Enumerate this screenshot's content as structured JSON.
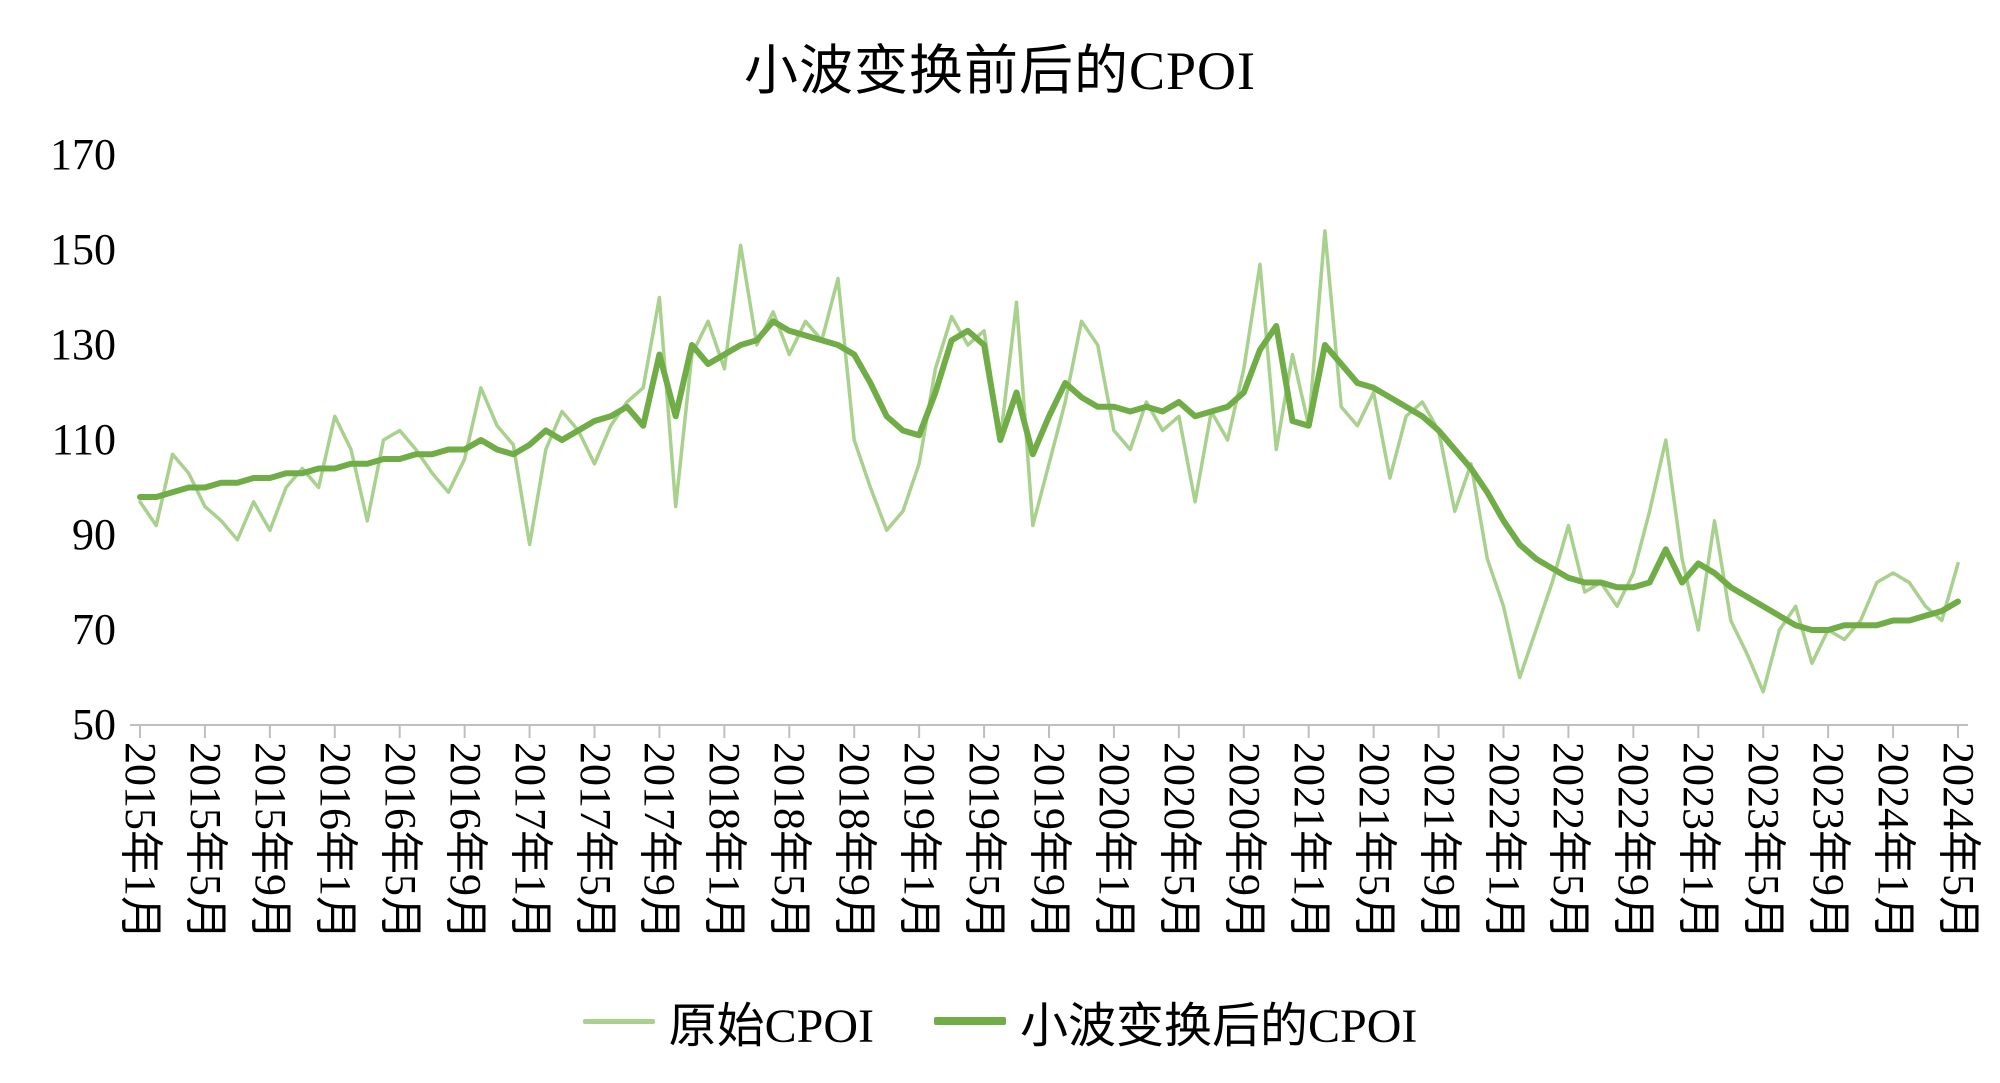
{
  "chart_data": {
    "type": "line",
    "title": "小波变换前后的CPOI",
    "xlabel": "",
    "ylabel": "",
    "ylim": [
      50,
      170
    ],
    "y_ticks": [
      50,
      70,
      90,
      110,
      130,
      150,
      170
    ],
    "grid": false,
    "legend_position": "bottom",
    "axis_color": "#bfbfbf",
    "x_tick_interval": 4,
    "x_labels": [
      "2015年1月",
      "2015年5月",
      "2015年9月",
      "2016年1月",
      "2016年5月",
      "2016年9月",
      "2017年1月",
      "2017年5月",
      "2017年9月",
      "2018年1月",
      "2018年5月",
      "2018年9月",
      "2019年1月",
      "2019年5月",
      "2019年9月",
      "2020年1月",
      "2020年5月",
      "2020年9月",
      "2021年1月",
      "2021年5月",
      "2021年9月",
      "2022年1月",
      "2022年5月",
      "2022年9月",
      "2023年1月",
      "2023年5月",
      "2023年9月",
      "2024年1月",
      "2024年5月"
    ],
    "x_start": "2015年1月",
    "x_end": "2024年5月",
    "x_frequency": "monthly",
    "series": [
      {
        "name": "原始CPOI",
        "color": "#a9d18e",
        "width": 3.5,
        "values": [
          97,
          92,
          107,
          103,
          96,
          93,
          89,
          97,
          91,
          100,
          104,
          100,
          115,
          108,
          93,
          110,
          112,
          108,
          103,
          99,
          106,
          121,
          113,
          109,
          88,
          108,
          116,
          112,
          105,
          113,
          118,
          121,
          140,
          96,
          128,
          135,
          125,
          151,
          130,
          137,
          128,
          135,
          131,
          144,
          110,
          100,
          91,
          95,
          105,
          125,
          136,
          130,
          133,
          110,
          139,
          92,
          105,
          118,
          135,
          130,
          112,
          108,
          118,
          112,
          115,
          97,
          116,
          110,
          125,
          147,
          108,
          128,
          113,
          154,
          117,
          113,
          120,
          102,
          115,
          118,
          112,
          95,
          105,
          85,
          75,
          60,
          70,
          80,
          92,
          78,
          80,
          75,
          82,
          95,
          110,
          85,
          70,
          93,
          72,
          65,
          57,
          70,
          75,
          63,
          70,
          68,
          72,
          80,
          82,
          80,
          75,
          72,
          84
        ]
      },
      {
        "name": "小波变换后的CPOI",
        "color": "#70ad47",
        "width": 6,
        "values": [
          98,
          98,
          99,
          100,
          100,
          101,
          101,
          102,
          102,
          103,
          103,
          104,
          104,
          105,
          105,
          106,
          106,
          107,
          107,
          108,
          108,
          110,
          108,
          107,
          109,
          112,
          110,
          112,
          114,
          115,
          117,
          113,
          128,
          115,
          130,
          126,
          128,
          130,
          131,
          135,
          133,
          132,
          131,
          130,
          128,
          122,
          115,
          112,
          111,
          120,
          131,
          133,
          130,
          110,
          120,
          107,
          115,
          122,
          119,
          117,
          117,
          116,
          117,
          116,
          118,
          115,
          116,
          117,
          120,
          129,
          134,
          114,
          113,
          130,
          126,
          122,
          121,
          119,
          117,
          115,
          112,
          108,
          104,
          99,
          93,
          88,
          85,
          83,
          81,
          80,
          80,
          79,
          79,
          80,
          87,
          80,
          84,
          82,
          79,
          77,
          75,
          73,
          71,
          70,
          70,
          71,
          71,
          71,
          72,
          72,
          73,
          74,
          76
        ]
      }
    ]
  }
}
